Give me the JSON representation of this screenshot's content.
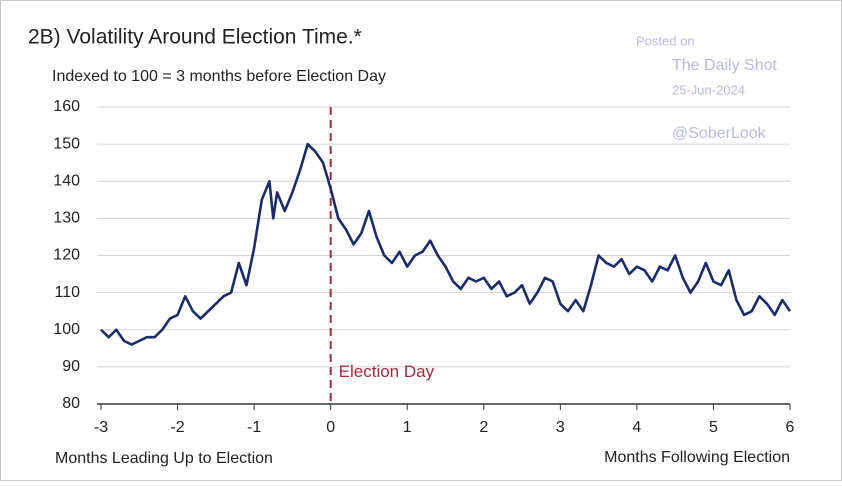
{
  "chart_data": {
    "type": "line",
    "title": "2B)  Volatility Around Election Time.*",
    "subtitle": "Indexed to 100 = 3 months before Election Day",
    "x_note_left": "Months Leading Up to Election",
    "x_note_right": "Months Following Election",
    "watermark": [
      "Posted on",
      "The Daily Shot",
      "25-Jun-2024",
      "@SoberLook"
    ],
    "event": {
      "x": 0,
      "label": "Election Day",
      "color": "#a8283a"
    },
    "color": "#1a2b6b",
    "x": [
      -3.0,
      -2.9,
      -2.8,
      -2.7,
      -2.6,
      -2.5,
      -2.4,
      -2.3,
      -2.2,
      -2.1,
      -2.0,
      -1.9,
      -1.8,
      -1.7,
      -1.6,
      -1.5,
      -1.4,
      -1.3,
      -1.2,
      -1.1,
      -1.0,
      -0.9,
      -0.8,
      -0.75,
      -0.7,
      -0.6,
      -0.5,
      -0.4,
      -0.3,
      -0.2,
      -0.1,
      0.0,
      0.1,
      0.2,
      0.3,
      0.4,
      0.5,
      0.6,
      0.7,
      0.8,
      0.9,
      1.0,
      1.1,
      1.2,
      1.3,
      1.4,
      1.5,
      1.6,
      1.7,
      1.8,
      1.9,
      2.0,
      2.1,
      2.2,
      2.3,
      2.4,
      2.5,
      2.6,
      2.7,
      2.8,
      2.9,
      3.0,
      3.1,
      3.2,
      3.3,
      3.4,
      3.5,
      3.6,
      3.7,
      3.8,
      3.9,
      4.0,
      4.1,
      4.2,
      4.3,
      4.4,
      4.5,
      4.6,
      4.7,
      4.8,
      4.9,
      5.0,
      5.1,
      5.2,
      5.3,
      5.4,
      5.5,
      5.6,
      5.7,
      5.8,
      5.9,
      6.0
    ],
    "values": [
      100,
      98,
      100,
      97,
      96,
      97,
      98,
      98,
      100,
      103,
      104,
      109,
      105,
      103,
      105,
      107,
      109,
      110,
      118,
      112,
      122,
      135,
      140,
      130,
      137,
      132,
      137,
      143,
      150,
      148,
      145,
      138,
      130,
      127,
      123,
      126,
      132,
      125,
      120,
      118,
      121,
      117,
      120,
      121,
      124,
      120,
      117,
      113,
      111,
      114,
      113,
      114,
      111,
      113,
      109,
      110,
      112,
      107,
      110,
      114,
      113,
      107,
      105,
      108,
      105,
      112,
      120,
      118,
      117,
      119,
      115,
      117,
      116,
      113,
      117,
      116,
      120,
      114,
      110,
      113,
      118,
      113,
      112,
      116,
      108,
      104,
      105,
      109,
      107,
      104,
      108,
      105
    ],
    "xlim": [
      -3,
      6
    ],
    "xticks": [
      -3,
      -2,
      -1,
      0,
      1,
      2,
      3,
      4,
      5,
      6
    ],
    "ylim": [
      80,
      160
    ],
    "yticks": [
      80,
      90,
      100,
      110,
      120,
      130,
      140,
      150,
      160
    ],
    "grid": true
  }
}
